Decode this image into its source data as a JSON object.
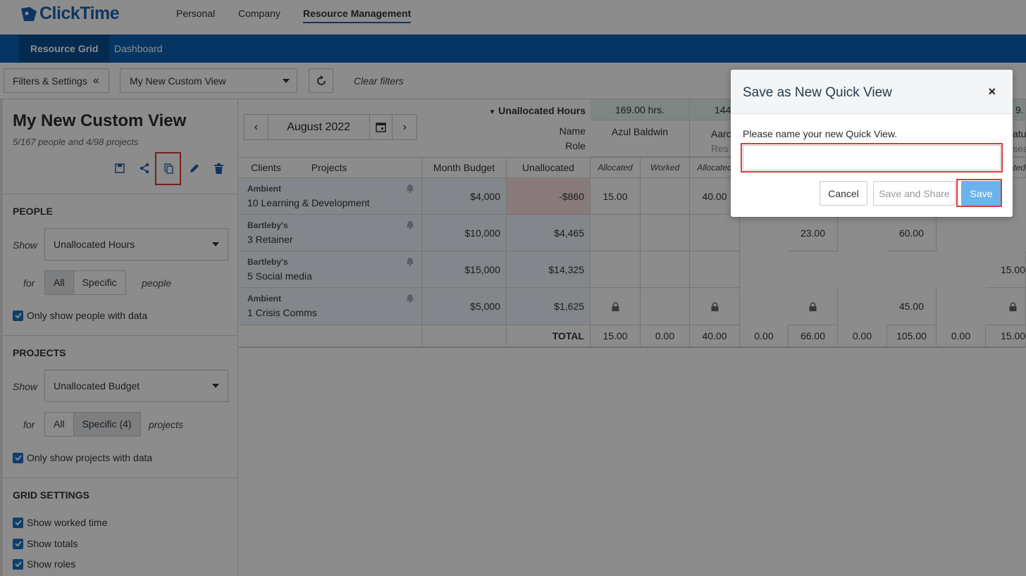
{
  "app": {
    "logo_text": "ClickTime",
    "nav": [
      "Personal",
      "Company",
      "Resource Management"
    ],
    "tabs": [
      "Resource Grid",
      "Dashboard"
    ]
  },
  "toolbar": {
    "filters_label": "Filters & Settings",
    "view_selected": "My New Custom View",
    "clear_filters": "Clear filters"
  },
  "sidebar": {
    "title": "My New Custom View",
    "subtitle": "5/167 people and 4/98 projects",
    "people": {
      "title": "PEOPLE",
      "show_label": "Show",
      "show_value": "Unallocated Hours",
      "for_label": "for",
      "options": [
        "All",
        "Specific"
      ],
      "suffix": "people",
      "checkbox": "Only show people with data"
    },
    "projects": {
      "title": "PROJECTS",
      "show_label": "Show",
      "show_value": "Unallocated Budget",
      "for_label": "for",
      "options": [
        "All",
        "Specific (4)"
      ],
      "suffix": "projects",
      "checkbox": "Only show projects with data"
    },
    "grid_settings": {
      "title": "GRID SETTINGS",
      "checkboxes": [
        "Show worked time",
        "Show totals",
        "Show roles"
      ]
    }
  },
  "grid": {
    "month": "August 2022",
    "unallocated_hours_label": "Unallocated Hours",
    "name_label": "Name",
    "role_label": "Role",
    "people_hours": [
      "169.00 hrs.",
      "144",
      "9."
    ],
    "people_names": [
      "Azul Baldwin",
      "Aarc",
      "atu"
    ],
    "people_roles": [
      "Res",
      "sea"
    ],
    "col_headers": [
      "Clients",
      "Projects",
      "Month Budget",
      "Unallocated"
    ],
    "sub_headers": [
      "Allocated",
      "Worked",
      "Allocated",
      "ated"
    ],
    "rows": [
      {
        "client": "Ambient",
        "project": "10 Learning & Development",
        "budget": "$4,000",
        "unallocated": "-$860",
        "vals": [
          "15.00",
          "",
          "40.00"
        ]
      },
      {
        "client": "Bartleby's",
        "project": "3 Retainer",
        "budget": "$10,000",
        "unallocated": "$4,465",
        "vals": [
          "23.00",
          "60.00"
        ]
      },
      {
        "client": "Bartleby's",
        "project": "5 Social media",
        "budget": "$15,000",
        "unallocated": "$14,325",
        "vals": [
          "15.00"
        ]
      },
      {
        "client": "Ambient",
        "project": "1 Crisis Comms",
        "budget": "$5,000",
        "unallocated": "$1,625",
        "vals": [
          "45.00"
        ]
      }
    ],
    "total_label": "TOTAL",
    "totals": [
      "15.00",
      "0.00",
      "40.00",
      "0.00",
      "66.00",
      "0.00",
      "105.00",
      "0.00",
      "15.00"
    ]
  },
  "modal": {
    "title": "Save as New Quick View",
    "close": "×",
    "prompt": "Please name your new Quick View.",
    "input_value": "",
    "cancel": "Cancel",
    "save_share": "Save and Share",
    "save": "Save"
  },
  "colors": {
    "brand_blue": "#0b5fb4",
    "save_button": "#6bb3ec",
    "highlight": "#e03a3a"
  }
}
